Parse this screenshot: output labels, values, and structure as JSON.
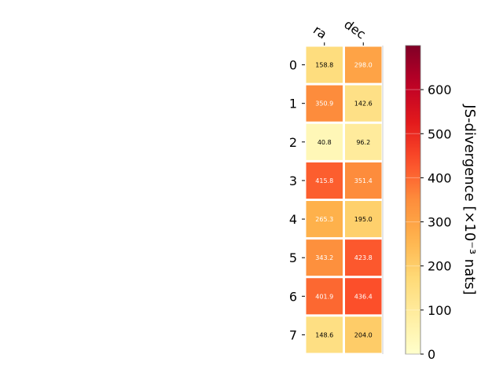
{
  "chart_data": {
    "type": "heatmap",
    "columns": [
      "ra",
      "dec"
    ],
    "rows": [
      "0",
      "1",
      "2",
      "3",
      "4",
      "5",
      "6",
      "7"
    ],
    "values": [
      [
        158.8,
        298.0
      ],
      [
        350.9,
        142.6
      ],
      [
        40.8,
        96.2
      ],
      [
        415.8,
        351.4
      ],
      [
        265.3,
        195.0
      ],
      [
        343.2,
        423.8
      ],
      [
        401.9,
        436.4
      ],
      [
        148.6,
        204.0
      ]
    ],
    "cell_labels": [
      [
        "158.8",
        "298.0"
      ],
      [
        "350.9",
        "142.6"
      ],
      [
        "40.8",
        "96.2"
      ],
      [
        "415.8",
        "351.4"
      ],
      [
        "265.3",
        "195.0"
      ],
      [
        "343.2",
        "423.8"
      ],
      [
        "401.9",
        "436.4"
      ],
      [
        "148.6",
        "204.0"
      ]
    ],
    "colorbar": {
      "label": "JS-divergence [×10⁻³ nats]",
      "range": [
        0,
        700
      ],
      "ticks": [
        0,
        100,
        200,
        300,
        400,
        500,
        600
      ],
      "colormap": "YlOrRd"
    },
    "grid": false
  }
}
